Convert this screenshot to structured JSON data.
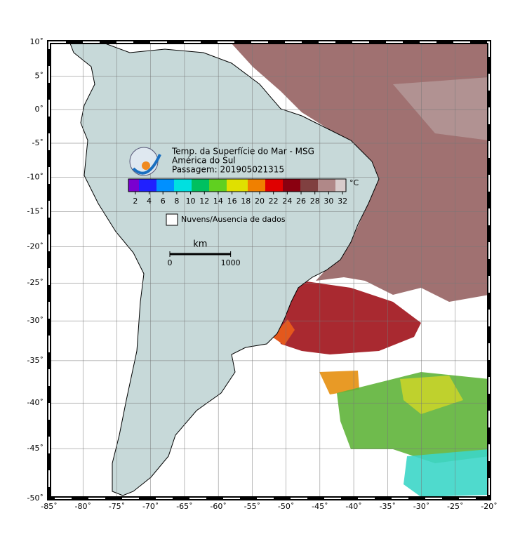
{
  "map": {
    "title": "Temp. da Superfície do Mar - MSG",
    "subtitle": "América do Sul",
    "pass": "Passagem: 201905021315",
    "projection": "mercator",
    "xlim": [
      -85,
      -20
    ],
    "ylim": [
      -50,
      10
    ],
    "grid": true,
    "xticks": [
      {
        "value": -85,
        "label": "-85˚"
      },
      {
        "value": -80,
        "label": "-80˚"
      },
      {
        "value": -75,
        "label": "-75˚"
      },
      {
        "value": -70,
        "label": "-70˚"
      },
      {
        "value": -65,
        "label": "-65˚"
      },
      {
        "value": -60,
        "label": "-60˚"
      },
      {
        "value": -55,
        "label": "-55˚"
      },
      {
        "value": -50,
        "label": "-50˚"
      },
      {
        "value": -45,
        "label": "-45˚"
      },
      {
        "value": -40,
        "label": "-40˚"
      },
      {
        "value": -35,
        "label": "-35˚"
      },
      {
        "value": -30,
        "label": "-30˚"
      },
      {
        "value": -25,
        "label": "-25˚"
      },
      {
        "value": -20,
        "label": "-20˚"
      }
    ],
    "yticks": [
      {
        "value": 10,
        "label": "10˚"
      },
      {
        "value": 5,
        "label": "5˚"
      },
      {
        "value": 0,
        "label": "0˚"
      },
      {
        "value": -5,
        "label": "-5˚"
      },
      {
        "value": -10,
        "label": "-10˚"
      },
      {
        "value": -15,
        "label": "-15˚"
      },
      {
        "value": -20,
        "label": "-20˚"
      },
      {
        "value": -25,
        "label": "-25˚"
      },
      {
        "value": -30,
        "label": "-30˚"
      },
      {
        "value": -35,
        "label": "-35˚"
      },
      {
        "value": -40,
        "label": "-40˚"
      },
      {
        "value": -45,
        "label": "-45˚"
      },
      {
        "value": -50,
        "label": "-50˚"
      }
    ],
    "colorbar": {
      "unit": "°C",
      "lim": [
        1,
        32.5
      ],
      "ticks": [
        2,
        4,
        6,
        8,
        10,
        12,
        14,
        16,
        18,
        20,
        22,
        24,
        26,
        28,
        30,
        32
      ]
    },
    "legend": "Nuvens/Ausencia de dados",
    "scale": {
      "unit": "km",
      "ticks": [
        0,
        1000
      ]
    }
  }
}
